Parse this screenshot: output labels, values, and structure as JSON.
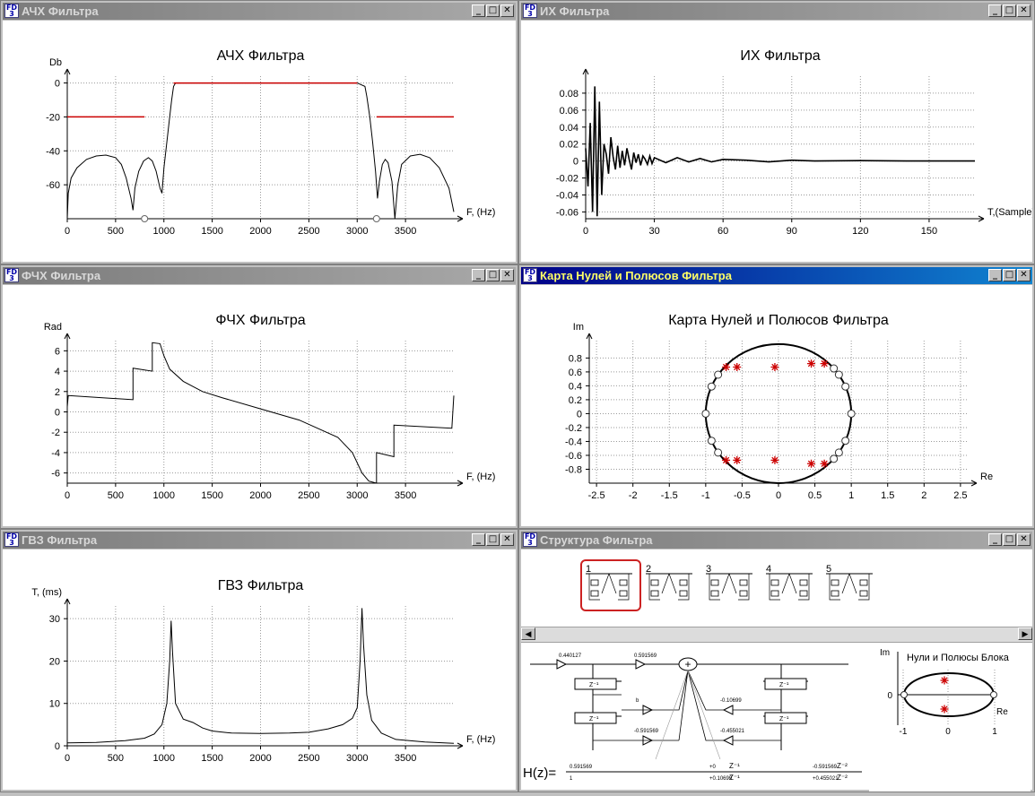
{
  "windows": {
    "ach": {
      "title": "АЧХ Фильтра",
      "chart_title": "АЧХ Фильтра"
    },
    "ih": {
      "title": "ИХ Фильтра",
      "chart_title": "ИХ Фильтра"
    },
    "fch": {
      "title": "ФЧХ Фильтра",
      "chart_title": "ФЧХ Фильтра"
    },
    "map": {
      "title": "Карта Нулей и Полюсов Фильтра",
      "chart_title": "Карта Нулей и Полюсов Фильтра"
    },
    "gvz": {
      "title": "ГВЗ Фильтра",
      "chart_title": "ГВЗ Фильтра"
    },
    "struct": {
      "title": "Структура Фильтра"
    }
  },
  "icons": {
    "app": "FD3-app-icon",
    "minimize": "minimize-icon",
    "maximize": "maximize-icon",
    "close": "close-icon"
  },
  "colors": {
    "active_title": "#000088",
    "inactive_title": "#808080",
    "spec_line": "#cc0000",
    "pole_marker": "#cc0000",
    "selected_block": "#cc2222"
  },
  "structure": {
    "blocks": [
      "1",
      "2",
      "3",
      "4",
      "5"
    ],
    "selected_block": "1",
    "scroll_left": "◀",
    "scroll_right": "▶",
    "coeffs": {
      "c1": "0.440127",
      "c2": "0.591569",
      "c3": "-0.10699",
      "c4": "-0.455021",
      "c5": "-0.591569",
      "c6": "0.591569",
      "c7": "-0.591569",
      "b": "b"
    },
    "delay_label": "Z⁻¹",
    "formula": {
      "lhs": "H(z)=",
      "num_1": "0.591569",
      "den_1": "1",
      "num_2": "+0",
      "den_2": "+0.10699",
      "num_3": "-0.591569",
      "den_3": "+0.455021",
      "z1": "Z⁻¹",
      "z2": "Z⁻²"
    },
    "mini_map": {
      "title": "Нули и Полюсы Блока",
      "y_label": "Im",
      "x_label": "Re",
      "x_ticks": [
        "-1",
        "0",
        "1"
      ],
      "y_ticks": [
        "0"
      ]
    }
  },
  "chart_data": [
    {
      "id": "ach",
      "type": "line",
      "title": "АЧХ Фильтра",
      "xlabel": "F, (Hz)",
      "ylabel": "Db",
      "xlim": [
        0,
        4000
      ],
      "ylim": [
        -80,
        4
      ],
      "xticks": [
        0,
        500,
        1000,
        1500,
        2000,
        2500,
        3000,
        3500
      ],
      "yticks": [
        0,
        -20,
        -40,
        -60
      ],
      "grid": true,
      "series": [
        {
          "values": [
            [
              0,
              -80
            ],
            [
              10,
              -65
            ],
            [
              40,
              -56
            ],
            [
              100,
              -50
            ],
            [
              200,
              -45
            ],
            [
              300,
              -43
            ],
            [
              400,
              -42.5
            ],
            [
              500,
              -44
            ],
            [
              560,
              -48
            ],
            [
              610,
              -56
            ],
            [
              660,
              -68
            ],
            [
              680,
              -75
            ],
            [
              700,
              -62
            ],
            [
              740,
              -52
            ],
            [
              790,
              -46
            ],
            [
              840,
              -44
            ],
            [
              880,
              -46
            ],
            [
              920,
              -52
            ],
            [
              960,
              -62
            ],
            [
              980,
              -65
            ],
            [
              1000,
              -50
            ],
            [
              1030,
              -35
            ],
            [
              1060,
              -20
            ],
            [
              1080,
              -10
            ],
            [
              1100,
              -2
            ],
            [
              1120,
              0
            ],
            [
              3000,
              0
            ],
            [
              3080,
              -2
            ],
            [
              3100,
              -8
            ],
            [
              3130,
              -20
            ],
            [
              3160,
              -35
            ],
            [
              3190,
              -52
            ],
            [
              3210,
              -68
            ],
            [
              3230,
              -58
            ],
            [
              3260,
              -48
            ],
            [
              3290,
              -45
            ],
            [
              3320,
              -47
            ],
            [
              3360,
              -58
            ],
            [
              3390,
              -80
            ],
            [
              3420,
              -60
            ],
            [
              3460,
              -48
            ],
            [
              3550,
              -43
            ],
            [
              3650,
              -42
            ],
            [
              3750,
              -44
            ],
            [
              3850,
              -50
            ],
            [
              3950,
              -62
            ],
            [
              4000,
              -76
            ]
          ]
        },
        {
          "values": [
            [
              0,
              -20
            ],
            [
              800,
              -20
            ]
          ]
        },
        {
          "values": [
            [
              1100,
              0
            ],
            [
              3000,
              0
            ]
          ]
        },
        {
          "values": [
            [
              3200,
              -20
            ],
            [
              4000,
              -20
            ]
          ]
        }
      ]
    },
    {
      "id": "ih",
      "type": "line",
      "title": "ИХ Фильтра",
      "xlabel": "T,(Sample)",
      "xlim": [
        0,
        170
      ],
      "ylim": [
        -0.068,
        0.1
      ],
      "xticks": [
        0,
        30,
        60,
        90,
        120,
        150
      ],
      "yticks": [
        0.08,
        0.06,
        0.04,
        0.02,
        0,
        -0.02,
        -0.04,
        -0.06
      ],
      "grid": true,
      "series": [
        {
          "values": [
            [
              0,
              0.015
            ],
            [
              1,
              -0.03
            ],
            [
              2,
              0.045
            ],
            [
              3,
              -0.06
            ],
            [
              4,
              0.088
            ],
            [
              5,
              -0.065
            ],
            [
              6,
              0.07
            ],
            [
              7,
              -0.04
            ],
            [
              8,
              0.02
            ],
            [
              9,
              0.008
            ],
            [
              10,
              -0.015
            ],
            [
              11,
              0.028
            ],
            [
              12,
              0.005
            ],
            [
              13,
              -0.01
            ],
            [
              14,
              0.018
            ],
            [
              15,
              -0.008
            ],
            [
              16,
              0.012
            ],
            [
              17,
              -0.005
            ],
            [
              18,
              0.015
            ],
            [
              19,
              0.002
            ],
            [
              20,
              -0.01
            ],
            [
              21,
              0.01
            ],
            [
              22,
              -0.002
            ],
            [
              23,
              0.008
            ],
            [
              24,
              -0.005
            ],
            [
              25,
              0.006
            ],
            [
              26,
              0.002
            ],
            [
              27,
              -0.004
            ],
            [
              28,
              0.006
            ],
            [
              29,
              -0.003
            ],
            [
              30,
              0.004
            ],
            [
              35,
              -0.002
            ],
            [
              40,
              0.004
            ],
            [
              45,
              -0.001
            ],
            [
              50,
              0.003
            ],
            [
              55,
              -0.001
            ],
            [
              60,
              0.002
            ],
            [
              70,
              0.001
            ],
            [
              80,
              -0.001
            ],
            [
              90,
              0.001
            ],
            [
              100,
              0
            ],
            [
              120,
              0.0005
            ],
            [
              140,
              0
            ],
            [
              170,
              0
            ]
          ]
        }
      ]
    },
    {
      "id": "fch",
      "type": "line",
      "title": "ФЧХ Фильтра",
      "xlabel": "F, (Hz)",
      "ylabel": "Rad",
      "xlim": [
        0,
        4000
      ],
      "ylim": [
        -7,
        7
      ],
      "xticks": [
        0,
        500,
        1000,
        1500,
        2000,
        2500,
        3000,
        3500
      ],
      "yticks": [
        6,
        4,
        2,
        0,
        -2,
        -4,
        -6
      ],
      "grid": true,
      "series": [
        {
          "values": [
            [
              0,
              0.5
            ],
            [
              10,
              1.6
            ],
            [
              680,
              1.2
            ],
            [
              680,
              4.3
            ],
            [
              880,
              4.0
            ],
            [
              880,
              6.8
            ],
            [
              960,
              6.7
            ],
            [
              1000,
              5.5
            ],
            [
              1060,
              4.2
            ],
            [
              1200,
              3.0
            ],
            [
              1400,
              2.0
            ],
            [
              1600,
              1.4
            ],
            [
              2000,
              0.3
            ],
            [
              2400,
              -0.8
            ],
            [
              2800,
              -2.5
            ],
            [
              2950,
              -4.0
            ],
            [
              3050,
              -6.0
            ],
            [
              3120,
              -6.8
            ],
            [
              3200,
              -7.0
            ],
            [
              3200,
              -4.0
            ],
            [
              3380,
              -4.4
            ],
            [
              3380,
              -1.3
            ],
            [
              3980,
              -1.6
            ],
            [
              4000,
              1.6
            ]
          ]
        }
      ]
    },
    {
      "id": "map",
      "type": "scatter",
      "title": "Карта Нулей и Полюсов Фильтра",
      "xlabel": "Re",
      "ylabel": "Im",
      "xlim": [
        -2.6,
        2.6
      ],
      "ylim": [
        -1.0,
        1.05
      ],
      "xticks": [
        -2.5,
        -2,
        -1.5,
        -1,
        -0.5,
        0,
        0.5,
        1,
        1.5,
        2,
        2.5
      ],
      "yticks": [
        0.8,
        0.6,
        0.4,
        0.2,
        0,
        -0.2,
        -0.4,
        -0.6,
        -0.8
      ],
      "grid": true,
      "series": [
        {
          "name": "zeros",
          "values": [
            [
              -1,
              0
            ],
            [
              1,
              0
            ],
            [
              -0.92,
              0.39
            ],
            [
              -0.83,
              0.56
            ],
            [
              0.83,
              0.56
            ],
            [
              0.92,
              0.39
            ],
            [
              0.76,
              0.65
            ],
            [
              -0.92,
              -0.39
            ],
            [
              -0.83,
              -0.56
            ],
            [
              0.83,
              -0.56
            ],
            [
              0.92,
              -0.39
            ],
            [
              0.76,
              -0.65
            ]
          ]
        },
        {
          "name": "poles",
          "values": [
            [
              -0.72,
              0.67
            ],
            [
              -0.57,
              0.67
            ],
            [
              -0.05,
              0.67
            ],
            [
              0.45,
              0.72
            ],
            [
              0.63,
              0.72
            ],
            [
              -0.72,
              -0.67
            ],
            [
              -0.57,
              -0.67
            ],
            [
              -0.05,
              -0.67
            ],
            [
              0.45,
              -0.72
            ],
            [
              0.63,
              -0.72
            ]
          ]
        }
      ]
    },
    {
      "id": "gvz",
      "type": "line",
      "title": "ГВЗ Фильтра",
      "xlabel": "F, (Hz)",
      "ylabel": "T, (ms)",
      "xlim": [
        0,
        4000
      ],
      "ylim": [
        0,
        33
      ],
      "xticks": [
        0,
        500,
        1000,
        1500,
        2000,
        2500,
        3000,
        3500
      ],
      "yticks": [
        30,
        20,
        10,
        0
      ],
      "grid": true,
      "series": [
        {
          "values": [
            [
              0,
              0.7
            ],
            [
              300,
              0.8
            ],
            [
              600,
              1.2
            ],
            [
              800,
              1.8
            ],
            [
              900,
              2.8
            ],
            [
              980,
              5
            ],
            [
              1030,
              10
            ],
            [
              1060,
              20
            ],
            [
              1075,
              29.5
            ],
            [
              1090,
              22
            ],
            [
              1120,
              10
            ],
            [
              1200,
              6.3
            ],
            [
              1300,
              5.5
            ],
            [
              1400,
              4.2
            ],
            [
              1500,
              3.5
            ],
            [
              1700,
              3.0
            ],
            [
              2000,
              2.9
            ],
            [
              2300,
              3.0
            ],
            [
              2500,
              3.2
            ],
            [
              2700,
              4.0
            ],
            [
              2850,
              5.0
            ],
            [
              2950,
              6.5
            ],
            [
              3000,
              9
            ],
            [
              3030,
              20
            ],
            [
              3050,
              32.5
            ],
            [
              3065,
              24
            ],
            [
              3100,
              12
            ],
            [
              3150,
              6
            ],
            [
              3250,
              3
            ],
            [
              3400,
              1.5
            ],
            [
              3700,
              0.9
            ],
            [
              4000,
              0.6
            ]
          ]
        }
      ]
    }
  ]
}
